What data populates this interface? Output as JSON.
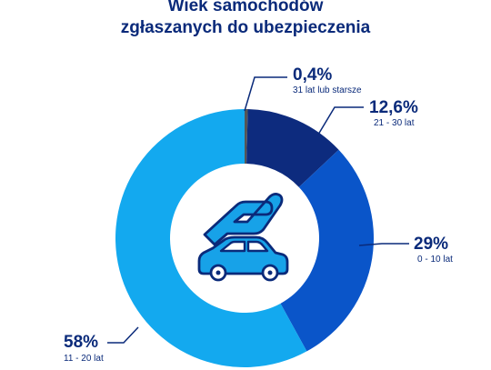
{
  "chart_data": {
    "type": "pie",
    "title": "Wiek samochodów zgłaszanych do ubezpieczenia",
    "title_lines": [
      "Wiek samochodów",
      "zgłaszanych do ubezpieczenia"
    ],
    "donut": true,
    "slices": [
      {
        "label": "0,4%",
        "value": 0.4,
        "category": "31 lat lub starsze",
        "color": "#555555"
      },
      {
        "label": "12,6%",
        "value": 12.6,
        "category": "21 - 30 lat",
        "color": "#0d2b7e"
      },
      {
        "label": "29%",
        "value": 29,
        "category": "0 - 10 lat",
        "color": "#0a55c9"
      },
      {
        "label": "58%",
        "value": 58,
        "category": "11 - 20 lat",
        "color": "#13a9ef"
      }
    ],
    "colors": {
      "text": "#0a2a7a",
      "icon_stroke": "#0a2a7a",
      "icon_fill": "#17a2e8",
      "leader": "#0a2a7a"
    }
  }
}
